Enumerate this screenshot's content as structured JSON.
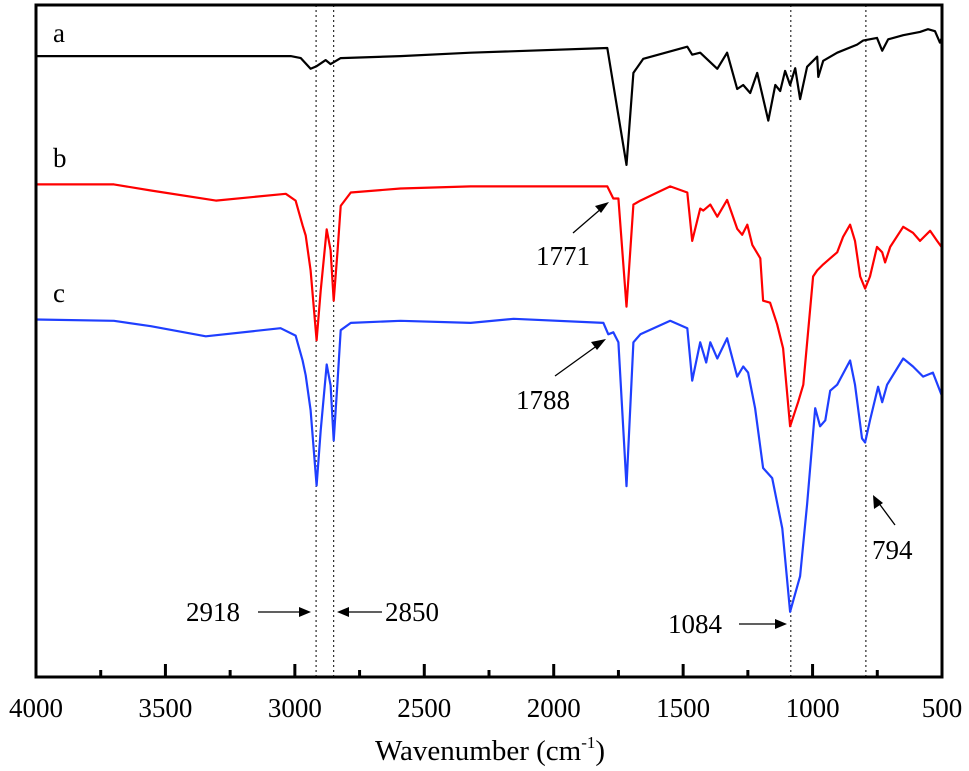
{
  "chart_data": {
    "type": "line",
    "title": "",
    "xlabel": "Wavenumber (cm",
    "xlabel_sup": "-1",
    "xlabel_close": ")",
    "ylabel": "",
    "xlim": [
      4000,
      500
    ],
    "x_reversed": true,
    "ylim": [
      0,
      100
    ],
    "y_ticks_shown": false,
    "grid": false,
    "x_ticks": [
      "4000",
      "3500",
      "3000",
      "2500",
      "2000",
      "1500",
      "1000",
      "500"
    ],
    "x_tick_values": [
      4000,
      3500,
      3000,
      2500,
      2000,
      1500,
      1000,
      500
    ],
    "x_minor_tick_values": [
      3750,
      3250,
      2750,
      2250,
      1750,
      1250,
      750
    ],
    "series": [
      {
        "name": "a",
        "color": "#000000",
        "points": [
          [
            4000,
            92.4
          ],
          [
            3016,
            92.4
          ],
          [
            2977,
            92.1
          ],
          [
            2939,
            90.5
          ],
          [
            2916,
            90.9
          ],
          [
            2881,
            91.8
          ],
          [
            2862,
            91.2
          ],
          [
            2823,
            92.1
          ],
          [
            2592,
            92.4
          ],
          [
            2321,
            92.9
          ],
          [
            1793,
            93.6
          ],
          [
            1719,
            76.2
          ],
          [
            1692,
            89.9
          ],
          [
            1654,
            92.0
          ],
          [
            1484,
            93.8
          ],
          [
            1465,
            92.6
          ],
          [
            1434,
            92.9
          ],
          [
            1368,
            90.5
          ],
          [
            1330,
            92.9
          ],
          [
            1291,
            87.5
          ],
          [
            1268,
            88.1
          ],
          [
            1241,
            86.9
          ],
          [
            1214,
            89.9
          ],
          [
            1171,
            82.8
          ],
          [
            1144,
            88.1
          ],
          [
            1125,
            87.2
          ],
          [
            1106,
            90.2
          ],
          [
            1087,
            88.1
          ],
          [
            1067,
            90.6
          ],
          [
            1048,
            86.0
          ],
          [
            1021,
            90.8
          ],
          [
            982,
            92.3
          ],
          [
            978,
            89.3
          ],
          [
            959,
            91.7
          ],
          [
            905,
            92.9
          ],
          [
            828,
            94.1
          ],
          [
            805,
            94.7
          ],
          [
            751,
            95.1
          ],
          [
            731,
            93.2
          ],
          [
            708,
            94.9
          ],
          [
            650,
            95.5
          ],
          [
            585,
            96.0
          ],
          [
            554,
            96.4
          ],
          [
            527,
            96.1
          ],
          [
            508,
            94.4
          ],
          [
            500,
            95.2
          ]
        ]
      },
      {
        "name": "b",
        "color": "#ff0000",
        "points": [
          [
            4000,
            73.3
          ],
          [
            3699,
            73.3
          ],
          [
            3556,
            72.4
          ],
          [
            3305,
            70.9
          ],
          [
            3035,
            71.9
          ],
          [
            2997,
            70.9
          ],
          [
            2970,
            67.2
          ],
          [
            2958,
            65.7
          ],
          [
            2939,
            60.5
          ],
          [
            2916,
            50.1
          ],
          [
            2900,
            57.5
          ],
          [
            2877,
            66.6
          ],
          [
            2862,
            63.5
          ],
          [
            2850,
            56.0
          ],
          [
            2835,
            63.5
          ],
          [
            2823,
            70.1
          ],
          [
            2784,
            72.1
          ],
          [
            2592,
            72.7
          ],
          [
            2321,
            73.0
          ],
          [
            1793,
            73.0
          ],
          [
            1770,
            71.2
          ],
          [
            1750,
            71.2
          ],
          [
            1719,
            55.1
          ],
          [
            1692,
            70.3
          ],
          [
            1665,
            70.9
          ],
          [
            1600,
            72.1
          ],
          [
            1550,
            73.0
          ],
          [
            1484,
            72.1
          ],
          [
            1465,
            64.9
          ],
          [
            1434,
            69.7
          ],
          [
            1422,
            69.4
          ],
          [
            1395,
            70.3
          ],
          [
            1368,
            68.5
          ],
          [
            1330,
            71.0
          ],
          [
            1291,
            66.7
          ],
          [
            1272,
            65.8
          ],
          [
            1252,
            67.3
          ],
          [
            1233,
            64.3
          ],
          [
            1202,
            62.3
          ],
          [
            1191,
            56.0
          ],
          [
            1164,
            55.7
          ],
          [
            1137,
            52.5
          ],
          [
            1114,
            48.9
          ],
          [
            1087,
            37.3
          ],
          [
            1056,
            40.9
          ],
          [
            1036,
            43.5
          ],
          [
            998,
            59.6
          ],
          [
            982,
            60.5
          ],
          [
            959,
            61.4
          ],
          [
            932,
            62.3
          ],
          [
            905,
            63.2
          ],
          [
            882,
            65.5
          ],
          [
            855,
            67.3
          ],
          [
            836,
            64.9
          ],
          [
            816,
            59.6
          ],
          [
            797,
            57.8
          ],
          [
            778,
            59.6
          ],
          [
            751,
            64.0
          ],
          [
            731,
            63.2
          ],
          [
            720,
            61.7
          ],
          [
            700,
            64.0
          ],
          [
            650,
            67.0
          ],
          [
            612,
            66.1
          ],
          [
            585,
            64.9
          ],
          [
            546,
            66.4
          ],
          [
            519,
            64.9
          ],
          [
            500,
            63.9
          ]
        ]
      },
      {
        "name": "c",
        "color": "#1f3fff",
        "points": [
          [
            4000,
            53.2
          ],
          [
            3699,
            53.0
          ],
          [
            3556,
            52.2
          ],
          [
            3344,
            50.7
          ],
          [
            3055,
            51.9
          ],
          [
            2997,
            50.8
          ],
          [
            2970,
            47.1
          ],
          [
            2958,
            44.9
          ],
          [
            2939,
            39.7
          ],
          [
            2916,
            28.5
          ],
          [
            2900,
            36.7
          ],
          [
            2877,
            46.5
          ],
          [
            2862,
            43.4
          ],
          [
            2850,
            35.2
          ],
          [
            2835,
            44.1
          ],
          [
            2823,
            51.6
          ],
          [
            2784,
            52.7
          ],
          [
            2592,
            53.0
          ],
          [
            2321,
            52.7
          ],
          [
            2155,
            53.3
          ],
          [
            1808,
            52.7
          ],
          [
            1789,
            51.0
          ],
          [
            1770,
            51.3
          ],
          [
            1750,
            49.8
          ],
          [
            1719,
            28.4
          ],
          [
            1692,
            49.8
          ],
          [
            1665,
            51.0
          ],
          [
            1550,
            53.0
          ],
          [
            1484,
            51.9
          ],
          [
            1465,
            44.1
          ],
          [
            1434,
            49.8
          ],
          [
            1411,
            46.8
          ],
          [
            1395,
            49.8
          ],
          [
            1368,
            47.4
          ],
          [
            1330,
            50.4
          ],
          [
            1291,
            44.7
          ],
          [
            1268,
            46.2
          ],
          [
            1249,
            45.3
          ],
          [
            1222,
            40.0
          ],
          [
            1191,
            31.1
          ],
          [
            1156,
            29.6
          ],
          [
            1117,
            22.1
          ],
          [
            1087,
            9.7
          ],
          [
            1048,
            15.0
          ],
          [
            1021,
            25.7
          ],
          [
            990,
            40.0
          ],
          [
            971,
            37.3
          ],
          [
            951,
            38.2
          ],
          [
            932,
            42.6
          ],
          [
            905,
            43.5
          ],
          [
            855,
            47.1
          ],
          [
            836,
            43.5
          ],
          [
            809,
            35.5
          ],
          [
            797,
            34.9
          ],
          [
            778,
            38.2
          ],
          [
            747,
            43.2
          ],
          [
            731,
            40.9
          ],
          [
            712,
            43.5
          ],
          [
            650,
            47.4
          ],
          [
            612,
            46.2
          ],
          [
            573,
            44.7
          ],
          [
            535,
            45.3
          ],
          [
            500,
            41.8
          ]
        ]
      }
    ],
    "reference_lines": [
      2918,
      2850,
      1084,
      794
    ],
    "annotations": [
      {
        "text": "1771",
        "target": 1771
      },
      {
        "text": "1788",
        "target": 1788
      },
      {
        "text": "794",
        "target": 794
      },
      {
        "text": "2918",
        "target": 2918
      },
      {
        "text": "2850",
        "target": 2850
      },
      {
        "text": "1084",
        "target": 1084
      }
    ]
  }
}
